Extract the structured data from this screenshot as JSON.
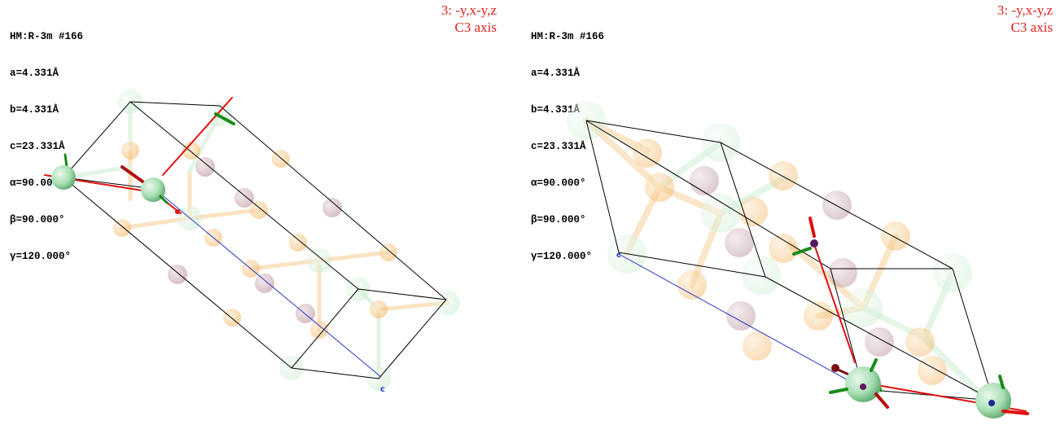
{
  "panels": [
    {
      "cell": {
        "spacegroup": "HM:R-3m #166",
        "a": "a=4.331Å",
        "b": "b=4.331Å",
        "c": "c=23.331Å",
        "alpha": "α=90.000°",
        "beta": "β=90.000°",
        "gamma": "γ=120.000°"
      },
      "symmetry": {
        "operation": "3: -y,x-y,z",
        "element": "C3 axis"
      },
      "axis_label": "c"
    },
    {
      "cell": {
        "spacegroup": "HM:R-3m #166",
        "a": "a=4.331Å",
        "b": "b=4.331Å",
        "c": "c=23.331Å",
        "alpha": "α=90.000°",
        "beta": "β=90.000°",
        "gamma": "γ=120.000°"
      },
      "symmetry": {
        "operation": "3: -y,x-y,z",
        "element": "C3 axis"
      },
      "axis_label": "c"
    }
  ],
  "colors": {
    "atom_green": "#a8dfb4",
    "atom_orange": "#f4b45a",
    "atom_mauve": "#b48a94",
    "symmetry_red": "#e01010",
    "axis_blue": "#2a3ac8",
    "axis_green": "#1a8a1a",
    "cell_edge": "#000000"
  }
}
